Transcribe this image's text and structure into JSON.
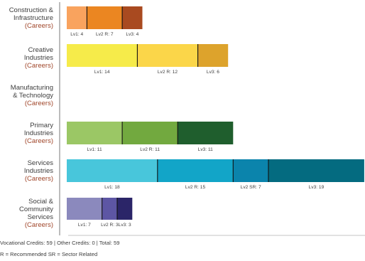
{
  "chart_data": {
    "type": "bar",
    "orientation": "horizontal",
    "stacked": true,
    "grid": false,
    "legend": "none",
    "categories": [
      {
        "label_lines": [
          "Construction &",
          "Infrastructure"
        ],
        "subtitle": "(Careers)"
      },
      {
        "label_lines": [
          "Creative",
          "Industries"
        ],
        "subtitle": "(Careers)"
      },
      {
        "label_lines": [
          "Manufacturing",
          "& Technology"
        ],
        "subtitle": "(Careers)"
      },
      {
        "label_lines": [
          "Primary",
          "Industries"
        ],
        "subtitle": "(Careers)"
      },
      {
        "label_lines": [
          "Services",
          "Industries"
        ],
        "subtitle": "(Careers)"
      },
      {
        "label_lines": [
          "Social &",
          "Community",
          "Services"
        ],
        "subtitle": "(Careers)"
      }
    ],
    "bars": [
      {
        "segments": [
          {
            "label": "Lv1: 4",
            "value": 4,
            "color": "#f9a35e"
          },
          {
            "label": "Lv2 R: 7",
            "value": 7,
            "color": "#eb8621"
          },
          {
            "label": "Lv3: 4",
            "value": 4,
            "color": "#a94a20"
          }
        ]
      },
      {
        "segments": [
          {
            "label": "Lv1: 14",
            "value": 14,
            "color": "#f6eb4a"
          },
          {
            "label": "Lv2 R: 12",
            "value": 12,
            "color": "#fbd649"
          },
          {
            "label": "Lv3: 6",
            "value": 6,
            "color": "#dda32c"
          }
        ]
      },
      {
        "segments": []
      },
      {
        "segments": [
          {
            "label": "Lv1: 11",
            "value": 11,
            "color": "#9bc765"
          },
          {
            "label": "Lv2 R: 11",
            "value": 11,
            "color": "#72a93f"
          },
          {
            "label": "Lv3: 11",
            "value": 11,
            "color": "#1f5e2d"
          }
        ]
      },
      {
        "segments": [
          {
            "label": "Lv1: 18",
            "value": 18,
            "color": "#48c6db"
          },
          {
            "label": "Lv2 R: 15",
            "value": 15,
            "color": "#12a5c8"
          },
          {
            "label": "Lv2 SR: 7",
            "value": 7,
            "color": "#0b84ac"
          },
          {
            "label": "Lv3: 19",
            "value": 19,
            "color": "#046b80"
          }
        ]
      },
      {
        "segments": [
          {
            "label": "Lv1: 7",
            "value": 7,
            "color": "#8b89bd"
          },
          {
            "label": "Lv2 R: 3",
            "value": 3,
            "color": "#5d56a4"
          },
          {
            "label": "Lv3: 3",
            "value": 3,
            "color": "#2b2568"
          }
        ]
      }
    ],
    "xlim": [
      0,
      59
    ]
  },
  "footer": {
    "line1": "Vocational Credits: 59 | Other Credits: 0 | Total: 59",
    "line2": "R = Recommended SR = Sector Related"
  }
}
